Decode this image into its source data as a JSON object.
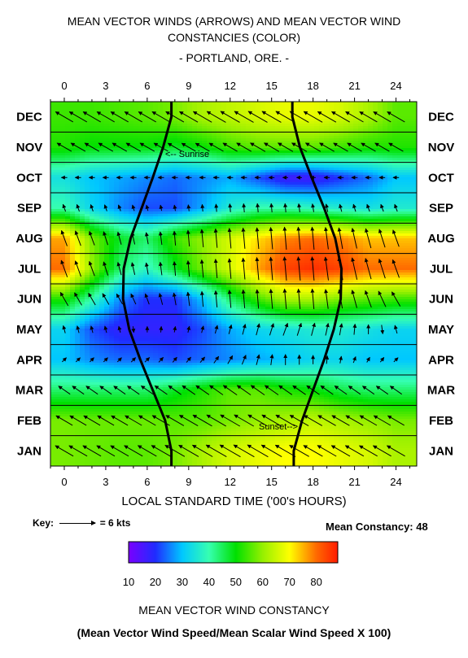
{
  "titles": {
    "line1": "MEAN VECTOR WINDS (ARROWS) AND MEAN VECTOR WIND",
    "line2": "CONSTANCIES (COLOR)",
    "line3": "- PORTLAND, ORE. -"
  },
  "xlabel": "LOCAL STANDARD TIME ('00's HOURS)",
  "key": {
    "label": "Key:",
    "value": "= 6 kts"
  },
  "mean_constancy": "Mean Constancy: 48",
  "colorbar": {
    "ticks": [
      "10",
      "20",
      "30",
      "40",
      "50",
      "60",
      "70",
      "80"
    ],
    "title": "MEAN VECTOR WIND CONSTANCY",
    "subtitle": "(Mean Vector Wind Speed/Mean Scalar Wind Speed X 100)"
  },
  "annotations": {
    "sunrise": "<-- Sunrise",
    "sunset": "Sunset-->"
  },
  "chart_data": {
    "type": "heatmap",
    "x_ticks": [
      0,
      3,
      6,
      9,
      12,
      15,
      18,
      21,
      24
    ],
    "x_range": [
      -1,
      25.5
    ],
    "months": [
      "JAN",
      "FEB",
      "MAR",
      "APR",
      "MAY",
      "JUN",
      "JUL",
      "AUG",
      "SEP",
      "OCT",
      "NOV",
      "DEC"
    ],
    "hours": [
      0,
      2,
      4,
      6,
      8,
      10,
      12,
      14,
      16,
      18,
      20,
      22,
      24
    ],
    "constancy": [
      [
        58,
        57,
        56,
        56,
        58,
        62,
        66,
        68,
        70,
        70,
        68,
        66,
        62
      ],
      [
        58,
        57,
        57,
        57,
        56,
        56,
        58,
        60,
        62,
        64,
        62,
        60,
        58
      ],
      [
        44,
        44,
        44,
        44,
        48,
        52,
        56,
        56,
        52,
        50,
        46,
        44,
        44
      ],
      [
        30,
        26,
        24,
        24,
        22,
        24,
        26,
        28,
        30,
        32,
        32,
        30,
        30
      ],
      [
        32,
        22,
        18,
        18,
        18,
        22,
        28,
        32,
        34,
        36,
        36,
        34,
        32
      ],
      [
        52,
        40,
        26,
        20,
        20,
        30,
        44,
        54,
        62,
        62,
        58,
        56,
        54
      ],
      [
        80,
        60,
        44,
        38,
        48,
        58,
        66,
        76,
        84,
        86,
        84,
        80,
        80
      ],
      [
        76,
        58,
        48,
        44,
        54,
        60,
        66,
        72,
        78,
        80,
        78,
        74,
        74
      ],
      [
        40,
        32,
        26,
        22,
        22,
        28,
        36,
        40,
        40,
        38,
        36,
        34,
        36
      ],
      [
        34,
        30,
        28,
        26,
        24,
        26,
        28,
        22,
        16,
        16,
        20,
        24,
        30
      ],
      [
        52,
        50,
        50,
        50,
        48,
        50,
        54,
        56,
        56,
        56,
        54,
        52,
        52
      ],
      [
        54,
        54,
        55,
        56,
        58,
        62,
        64,
        66,
        68,
        68,
        66,
        62,
        56
      ]
    ],
    "wind_speed_kts": [
      [
        3.5,
        3.5,
        3.5,
        3.6,
        3.8,
        3.9,
        4.0,
        4.0,
        3.9,
        3.7,
        3.6,
        3.5,
        3.5
      ],
      [
        3.2,
        3.2,
        3.2,
        3.3,
        3.5,
        3.7,
        3.8,
        3.8,
        3.7,
        3.5,
        3.4,
        3.3,
        3.2
      ],
      [
        2.4,
        2.4,
        2.4,
        2.5,
        2.6,
        2.7,
        2.8,
        2.8,
        2.7,
        2.6,
        2.5,
        2.4,
        2.4
      ],
      [
        1.0,
        1.0,
        1.0,
        1.1,
        1.1,
        1.2,
        1.6,
        1.8,
        1.8,
        1.5,
        1.2,
        1.0,
        1.0
      ],
      [
        1.3,
        1.2,
        1.1,
        1.0,
        1.0,
        1.2,
        1.6,
        2.0,
        2.2,
        2.2,
        2.0,
        1.6,
        1.4
      ],
      [
        2.6,
        2.3,
        2.0,
        1.9,
        2.1,
        2.6,
        3.0,
        3.2,
        3.4,
        3.4,
        3.2,
        3.0,
        2.8
      ],
      [
        3.0,
        2.6,
        2.2,
        2.0,
        2.4,
        3.0,
        3.4,
        3.8,
        4.0,
        4.0,
        3.9,
        3.6,
        3.2
      ],
      [
        2.8,
        2.5,
        2.2,
        2.0,
        2.4,
        3.0,
        3.4,
        3.6,
        3.8,
        3.8,
        3.6,
        3.4,
        3.0
      ],
      [
        1.3,
        1.2,
        1.1,
        1.0,
        1.0,
        1.2,
        1.4,
        1.5,
        1.5,
        1.4,
        1.3,
        1.3,
        1.3
      ],
      [
        1.0,
        1.0,
        1.0,
        1.0,
        1.0,
        1.0,
        1.0,
        1.0,
        0.9,
        0.9,
        1.0,
        1.0,
        1.0
      ],
      [
        2.8,
        2.8,
        2.8,
        2.8,
        2.7,
        2.7,
        2.8,
        2.9,
        2.9,
        2.9,
        2.8,
        2.8,
        2.8
      ],
      [
        3.4,
        3.4,
        3.4,
        3.4,
        3.5,
        3.6,
        3.7,
        3.7,
        3.7,
        3.6,
        3.5,
        3.4,
        3.4
      ]
    ],
    "wind_toward_deg": [
      [
        300,
        300,
        300,
        300,
        300,
        300,
        300,
        300,
        300,
        300,
        300,
        300,
        300
      ],
      [
        300,
        300,
        300,
        300,
        300,
        300,
        300,
        300,
        300,
        300,
        300,
        300,
        300
      ],
      [
        305,
        305,
        305,
        305,
        305,
        305,
        305,
        305,
        305,
        305,
        305,
        305,
        305
      ],
      [
        45,
        45,
        45,
        45,
        40,
        40,
        30,
        15,
        0,
        0,
        10,
        30,
        45
      ],
      [
        345,
        345,
        345,
        0,
        10,
        15,
        15,
        15,
        20,
        15,
        10,
        0,
        345
      ],
      [
        330,
        330,
        330,
        340,
        350,
        355,
        355,
        355,
        355,
        355,
        350,
        340,
        330
      ],
      [
        340,
        340,
        345,
        350,
        355,
        355,
        355,
        355,
        355,
        355,
        350,
        345,
        340
      ],
      [
        340,
        340,
        345,
        350,
        355,
        355,
        355,
        355,
        355,
        355,
        350,
        345,
        340
      ],
      [
        340,
        340,
        340,
        345,
        350,
        355,
        355,
        355,
        355,
        350,
        345,
        340,
        340
      ],
      [
        270,
        270,
        270,
        270,
        270,
        270,
        270,
        270,
        270,
        270,
        270,
        270,
        270
      ],
      [
        300,
        300,
        300,
        300,
        300,
        300,
        300,
        300,
        300,
        300,
        300,
        300,
        300
      ],
      [
        300,
        300,
        300,
        300,
        300,
        300,
        300,
        300,
        300,
        300,
        300,
        300,
        300
      ]
    ],
    "sunrise_hour": [
      7.75,
      7.3,
      6.4,
      5.5,
      4.7,
      4.25,
      4.3,
      4.8,
      5.6,
      6.4,
      7.15,
      7.75
    ],
    "sunset_hour": [
      16.6,
      17.2,
      18.0,
      18.8,
      19.5,
      20.0,
      20.05,
      19.6,
      18.8,
      17.9,
      17.05,
      16.5
    ],
    "colorscale": [
      [
        10,
        "#7a00ff"
      ],
      [
        20,
        "#1f2cff"
      ],
      [
        30,
        "#00c8ff"
      ],
      [
        40,
        "#36ffb0"
      ],
      [
        50,
        "#00e000"
      ],
      [
        60,
        "#96f000"
      ],
      [
        70,
        "#ffff00"
      ],
      [
        80,
        "#ff6a00"
      ],
      [
        88,
        "#ff1a00"
      ]
    ],
    "colorbar_range": [
      10,
      88
    ]
  }
}
